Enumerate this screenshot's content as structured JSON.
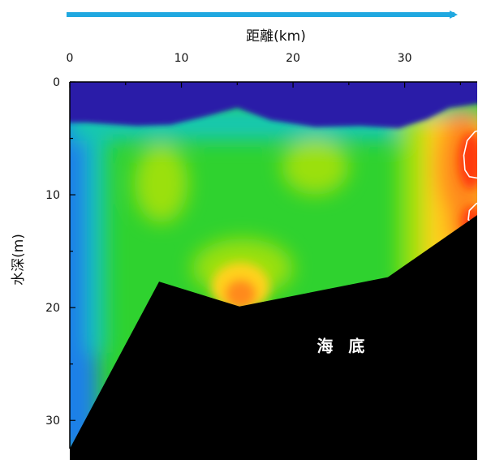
{
  "chart_data": {
    "type": "heatmap",
    "title": "",
    "xlabel": "距離(km)",
    "ylabel": "水深(m)",
    "x_axis_position": "top",
    "y_axis_inverted": true,
    "xlim": [
      0,
      36.5
    ],
    "ylim": [
      0,
      32.5
    ],
    "x_ticks": [
      0,
      10,
      20,
      30
    ],
    "y_ticks": [
      0,
      10,
      20,
      30
    ],
    "direction_arrow_color": "#20a8e0",
    "colormap": [
      "#2a1aa8",
      "#1f80e8",
      "#12c8b0",
      "#2fd22f",
      "#9be010",
      "#ffd21a",
      "#ff8a1a",
      "#ff3a10"
    ],
    "seabed_color": "#000000",
    "seabed_profile": {
      "x": [
        0,
        8,
        15.2,
        28.5,
        36.5
      ],
      "depth": [
        32.5,
        17.7,
        19.9,
        17.3,
        11.8
      ]
    },
    "contour_color": "#ffffff",
    "annotations": [
      {
        "text": "海 底",
        "x": 24.5,
        "y": 23.4
      }
    ]
  }
}
